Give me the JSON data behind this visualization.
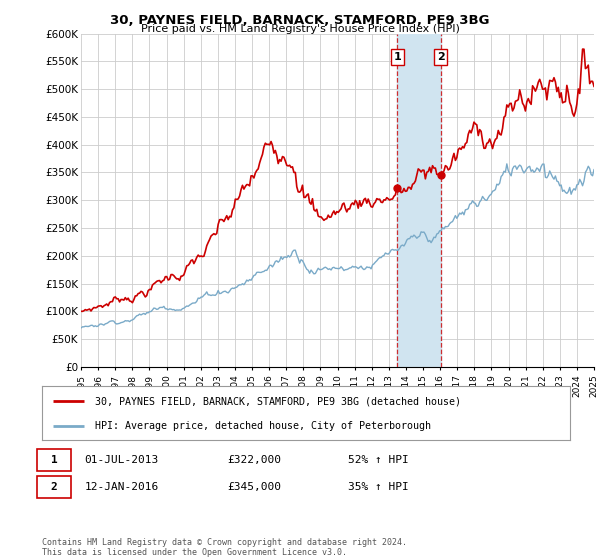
{
  "title": "30, PAYNES FIELD, BARNACK, STAMFORD, PE9 3BG",
  "subtitle": "Price paid vs. HM Land Registry's House Price Index (HPI)",
  "ylabel_ticks": [
    "£0",
    "£50K",
    "£100K",
    "£150K",
    "£200K",
    "£250K",
    "£300K",
    "£350K",
    "£400K",
    "£450K",
    "£500K",
    "£550K",
    "£600K"
  ],
  "ytick_values": [
    0,
    50000,
    100000,
    150000,
    200000,
    250000,
    300000,
    350000,
    400000,
    450000,
    500000,
    550000,
    600000
  ],
  "x_start_year": 1995,
  "x_end_year": 2025,
  "sale1_date": 2013.5,
  "sale1_price": 322000,
  "sale1_label": "1",
  "sale1_date_str": "01-JUL-2013",
  "sale1_price_str": "£322,000",
  "sale1_hpi_str": "52% ↑ HPI",
  "sale2_date": 2016.04,
  "sale2_price": 345000,
  "sale2_label": "2",
  "sale2_date_str": "12-JAN-2016",
  "sale2_price_str": "£345,000",
  "sale2_hpi_str": "35% ↑ HPI",
  "red_color": "#cc0000",
  "blue_color": "#7aaac8",
  "shade_color": "#d0e4f0",
  "legend1_text": "30, PAYNES FIELD, BARNACK, STAMFORD, PE9 3BG (detached house)",
  "legend2_text": "HPI: Average price, detached house, City of Peterborough",
  "footer": "Contains HM Land Registry data © Crown copyright and database right 2024.\nThis data is licensed under the Open Government Licence v3.0.",
  "bg_color": "#ffffff",
  "grid_color": "#cccccc"
}
